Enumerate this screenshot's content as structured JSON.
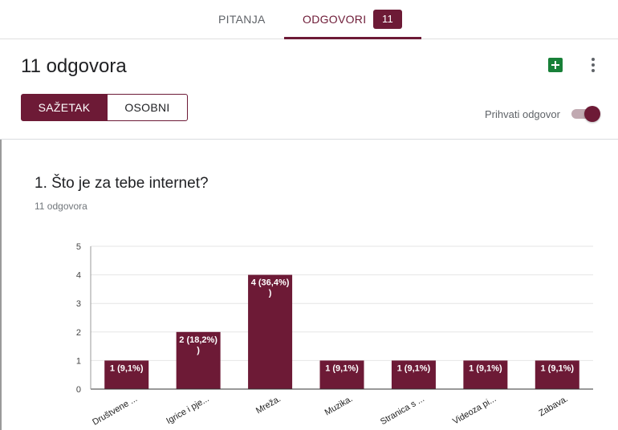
{
  "tabs": {
    "questions_label": "PITANJA",
    "responses_label": "ODGOVORI",
    "responses_count": "11"
  },
  "header": {
    "title": "11 odgovora",
    "sheets_icon": "google-sheets-icon",
    "more_icon": "more-vert-icon",
    "summary_label": "SAŽETAK",
    "individual_label": "OSOBNI",
    "accept_label": "Prihvati odgovor",
    "accepting": true
  },
  "question": {
    "title": "1. Što je za tebe internet?",
    "count_text": "11 odgovora"
  },
  "colors": {
    "accent": "#6d1a36",
    "grid": "#e6e6e6"
  },
  "chart_data": {
    "type": "bar",
    "categories": [
      "Društvene ...",
      "Igrice i pje...",
      "Mreža.",
      "Muzika.",
      "Stranica s ...",
      "Videoza pi...",
      "Zabava."
    ],
    "values": [
      1,
      2,
      4,
      1,
      1,
      1,
      1
    ],
    "data_labels": [
      "1 (9,1%)",
      "2 (18,2%)",
      "4 (36,4%)",
      "1 (9,1%)",
      "1 (9,1%)",
      "1 (9,1%)",
      "1 (9,1%)"
    ],
    "yticks": [
      "0",
      "1",
      "2",
      "3",
      "4",
      "5"
    ],
    "ylim": [
      0,
      5
    ],
    "grid": true,
    "legend": "none"
  }
}
